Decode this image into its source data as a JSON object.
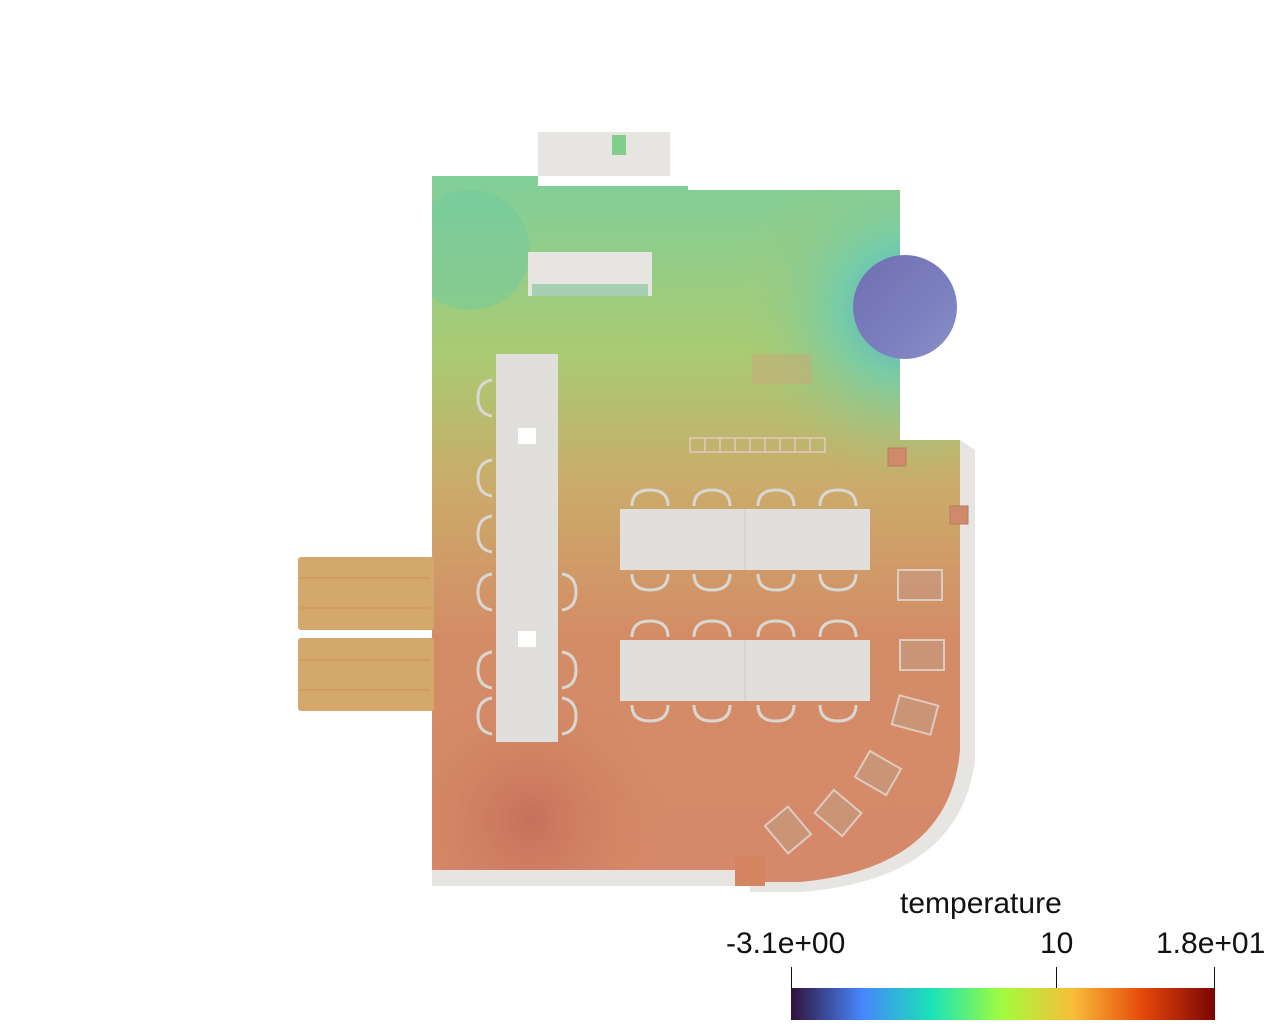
{
  "colorbar": {
    "title": "temperature",
    "min_label": "-3.1e+00",
    "mid_label": "10",
    "max_label": "1.8e+01",
    "min_value": -3.1,
    "mid_value": 10,
    "max_value": 18,
    "colormap": [
      "#30123b",
      "#4686fa",
      "#1ae4b6",
      "#a2fc3c",
      "#fabc39",
      "#e4460a",
      "#7a0403"
    ]
  }
}
